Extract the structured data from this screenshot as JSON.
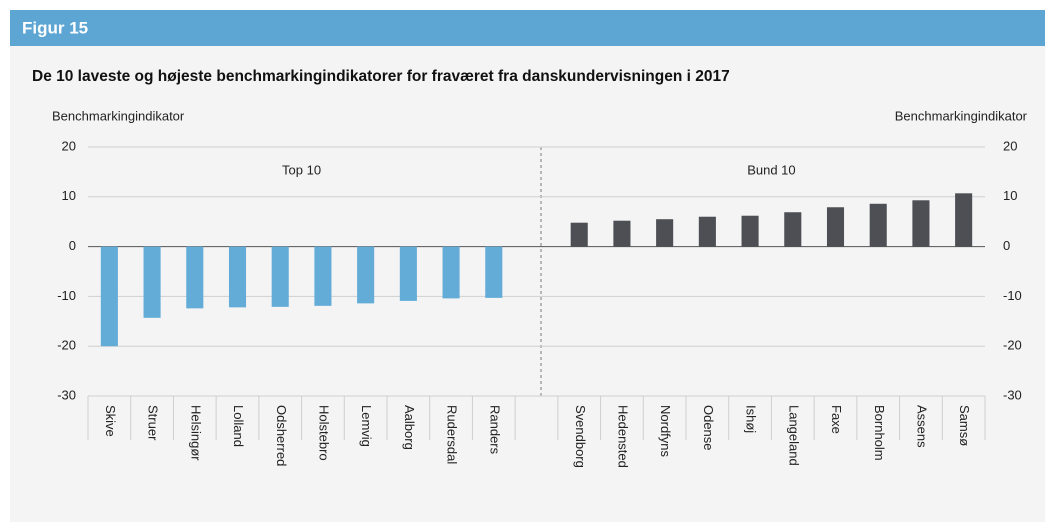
{
  "header": {
    "title": "Figur 15"
  },
  "chart_data": {
    "type": "bar",
    "title": "De 10 laveste og højeste benchmarkingindikatorer for fraværet fra danskundervisningen i 2017",
    "y_label": "Benchmarkingindikator",
    "y2_label": "Benchmarkingindikator",
    "categories": [
      "Skive",
      "Struer",
      "Helsingør",
      "Lolland",
      "Odsherred",
      "Holstebro",
      "Lemvig",
      "Aalborg",
      "Rudersdal",
      "Randers",
      null,
      "Svendborg",
      "Hedensted",
      "Nordfyns",
      "Odense",
      "Ishøj",
      "Langeland",
      "Faxe",
      "Bornholm",
      "Assens",
      "Samsø"
    ],
    "series": [
      {
        "name": "Top 10",
        "color": "#64acd8",
        "values": [
          -20,
          -14.3,
          -12.4,
          -12.2,
          -12.1,
          -11.9,
          -11.4,
          -10.9,
          -10.4,
          -10.3,
          null,
          null,
          null,
          null,
          null,
          null,
          null,
          null,
          null,
          null,
          null
        ]
      },
      {
        "name": "Bund 10",
        "color": "#4d4f54",
        "values": [
          null,
          null,
          null,
          null,
          null,
          null,
          null,
          null,
          null,
          null,
          null,
          4.8,
          5.2,
          5.5,
          6.0,
          6.2,
          6.9,
          7.9,
          8.6,
          9.3,
          10.7
        ]
      }
    ],
    "ylim": [
      -30,
      20
    ],
    "yticks": [
      -30,
      -20,
      -10,
      0,
      10,
      20
    ],
    "y2lim": [
      -30,
      20
    ],
    "y2ticks": [
      -30,
      -20,
      -10,
      0,
      10,
      20
    ],
    "grid": true
  }
}
